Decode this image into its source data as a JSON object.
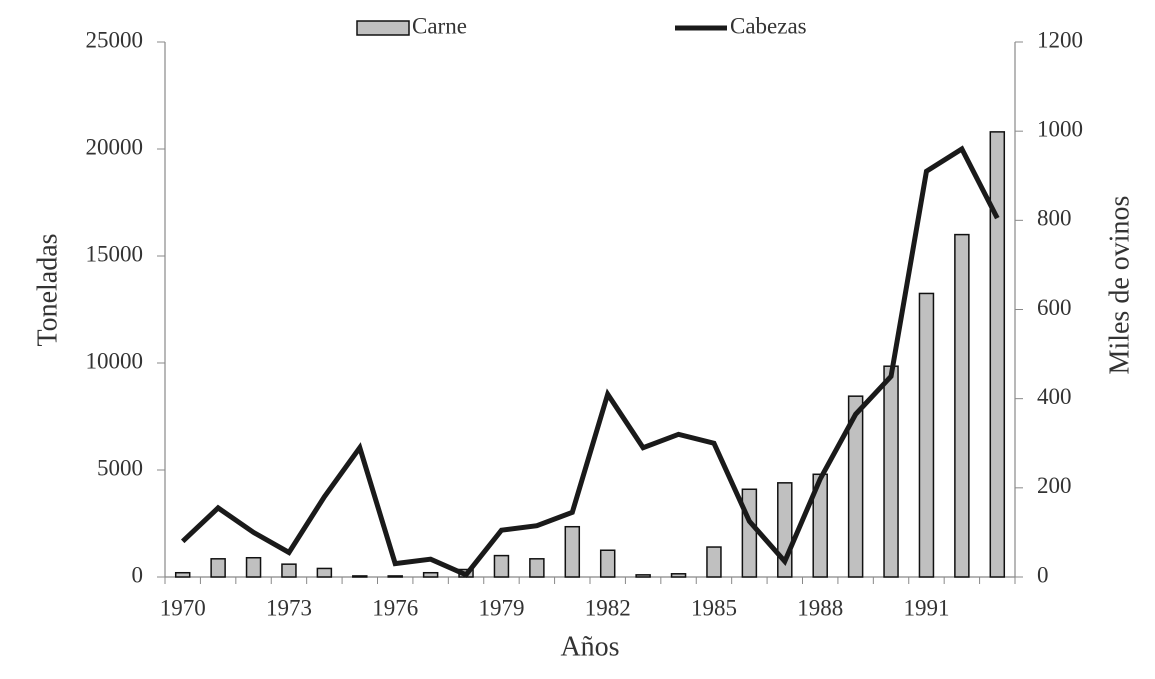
{
  "chart_data": {
    "type": "bar",
    "x_label": "Años",
    "y_label": "Toneladas",
    "y2_label": "Miles de ovinos",
    "categories": [
      "1970",
      null,
      null,
      "1973",
      null,
      null,
      "1976",
      null,
      null,
      "1979",
      null,
      null,
      "1982",
      null,
      null,
      "1985",
      null,
      null,
      "1988",
      null,
      null,
      "1991",
      null,
      null
    ],
    "series": [
      {
        "name": "Carne",
        "type": "bar",
        "color": "#c0c0c0",
        "values": [
          200,
          850,
          900,
          600,
          400,
          50,
          50,
          200,
          350,
          1000,
          850,
          2350,
          1250,
          100,
          150,
          1400,
          4100,
          4400,
          4800,
          8450,
          9850,
          13250,
          16000,
          20800
        ]
      },
      {
        "name": "Cabezas",
        "type": "line",
        "axis": "y2",
        "color": "#1a1a1a",
        "values": [
          80,
          155,
          100,
          55,
          180,
          290,
          30,
          40,
          5,
          105,
          115,
          145,
          410,
          290,
          320,
          300,
          125,
          35,
          220,
          365,
          450,
          910,
          960,
          805
        ]
      }
    ],
    "ylim": [
      0,
      25000
    ],
    "yticks": [
      0,
      5000,
      10000,
      15000,
      20000,
      25000
    ],
    "y2lim": [
      0,
      1200
    ],
    "y2ticks": [
      0,
      200,
      400,
      600,
      800,
      1000,
      1200
    ],
    "grid": false,
    "legend": "top"
  }
}
